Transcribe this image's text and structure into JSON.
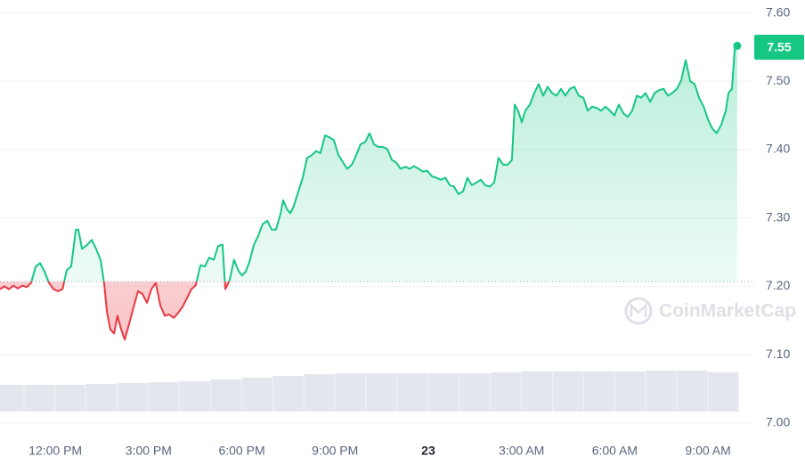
{
  "chart_data": {
    "type": "line",
    "x": [
      -1.78,
      -1.64,
      -1.49,
      -1.35,
      -1.21,
      -1.06,
      -0.92,
      -0.78,
      -0.63,
      -0.49,
      -0.35,
      -0.2,
      -0.06,
      0.08,
      0.23,
      0.37,
      0.51,
      0.66,
      0.74,
      0.86,
      1.03,
      1.17,
      1.31,
      1.46,
      1.57,
      1.66,
      1.77,
      1.89,
      2.0,
      2.12,
      2.23,
      2.37,
      2.52,
      2.66,
      2.8,
      2.95,
      3.09,
      3.23,
      3.38,
      3.52,
      3.66,
      3.81,
      3.95,
      4.09,
      4.24,
      4.38,
      4.52,
      4.67,
      4.81,
      4.95,
      5.1,
      5.24,
      5.38,
      5.47,
      5.61,
      5.75,
      5.9,
      6.01,
      6.13,
      6.24,
      6.39,
      6.53,
      6.67,
      6.82,
      6.96,
      7.1,
      7.25,
      7.33,
      7.45,
      7.56,
      7.67,
      7.82,
      7.96,
      8.1,
      8.25,
      8.39,
      8.53,
      8.68,
      8.82,
      8.96,
      9.11,
      9.25,
      9.39,
      9.54,
      9.68,
      9.82,
      9.97,
      10.11,
      10.25,
      10.4,
      10.54,
      10.68,
      10.83,
      10.97,
      11.11,
      11.26,
      11.4,
      11.54,
      11.69,
      11.83,
      11.97,
      12.12,
      12.26,
      12.4,
      12.55,
      12.69,
      12.83,
      12.97,
      13.12,
      13.26,
      13.4,
      13.55,
      13.69,
      13.83,
      13.98,
      14.12,
      14.26,
      14.41,
      14.55,
      14.69,
      14.78,
      14.89,
      15.01,
      15.12,
      15.27,
      15.41,
      15.55,
      15.7,
      15.84,
      15.98,
      16.13,
      16.27,
      16.41,
      16.56,
      16.7,
      16.84,
      16.99,
      17.13,
      17.27,
      17.42,
      17.56,
      17.7,
      17.85,
      17.99,
      18.13,
      18.28,
      18.42,
      18.56,
      18.71,
      18.85,
      18.99,
      19.14,
      19.28,
      19.42,
      19.57,
      19.71,
      19.85,
      20.0,
      20.14,
      20.28,
      20.43,
      20.57,
      20.71,
      20.86,
      21.0,
      21.14,
      21.28,
      21.43,
      21.57,
      21.66,
      21.77,
      21.86,
      21.94
    ],
    "values": [
      7.196,
      7.2,
      7.196,
      7.201,
      7.197,
      7.201,
      7.199,
      7.205,
      7.229,
      7.234,
      7.222,
      7.205,
      7.196,
      7.193,
      7.196,
      7.224,
      7.229,
      7.283,
      7.283,
      7.255,
      7.261,
      7.268,
      7.255,
      7.238,
      7.205,
      7.163,
      7.137,
      7.131,
      7.157,
      7.137,
      7.122,
      7.144,
      7.17,
      7.193,
      7.189,
      7.176,
      7.196,
      7.205,
      7.172,
      7.157,
      7.159,
      7.154,
      7.161,
      7.17,
      7.183,
      7.196,
      7.202,
      7.231,
      7.229,
      7.242,
      7.239,
      7.259,
      7.261,
      7.196,
      7.209,
      7.239,
      7.222,
      7.216,
      7.222,
      7.235,
      7.261,
      7.274,
      7.291,
      7.296,
      7.283,
      7.283,
      7.307,
      7.326,
      7.313,
      7.307,
      7.317,
      7.339,
      7.359,
      7.388,
      7.392,
      7.398,
      7.395,
      7.421,
      7.418,
      7.414,
      7.392,
      7.382,
      7.372,
      7.378,
      7.392,
      7.408,
      7.411,
      7.424,
      7.408,
      7.404,
      7.404,
      7.401,
      7.385,
      7.381,
      7.372,
      7.375,
      7.372,
      7.376,
      7.372,
      7.368,
      7.369,
      7.361,
      7.359,
      7.356,
      7.359,
      7.348,
      7.346,
      7.335,
      7.339,
      7.359,
      7.348,
      7.352,
      7.356,
      7.348,
      7.346,
      7.352,
      7.388,
      7.378,
      7.378,
      7.385,
      7.466,
      7.457,
      7.44,
      7.457,
      7.466,
      7.483,
      7.496,
      7.479,
      7.492,
      7.483,
      7.479,
      7.489,
      7.479,
      7.489,
      7.492,
      7.479,
      7.476,
      7.457,
      7.463,
      7.461,
      7.457,
      7.463,
      7.457,
      7.45,
      7.466,
      7.453,
      7.448,
      7.457,
      7.479,
      7.476,
      7.483,
      7.47,
      7.483,
      7.487,
      7.489,
      7.479,
      7.483,
      7.489,
      7.502,
      7.531,
      7.5,
      7.496,
      7.476,
      7.463,
      7.444,
      7.431,
      7.424,
      7.437,
      7.457,
      7.483,
      7.489,
      7.548,
      7.552
    ],
    "color": "#16c784",
    "down_color": "#ea3943",
    "baseline": 7.207,
    "current_price": 7.55,
    "watermark": "CoinMarketCap",
    "volume": {
      "color": "#e3e6ec",
      "x": [
        -1.5,
        -0.5,
        0.5,
        1.5,
        2.5,
        3.5,
        4.5,
        5.5,
        6.5,
        7.5,
        8.5,
        9.5,
        10.5,
        11.5,
        12.5,
        13.5,
        14.5,
        15.5,
        16.5,
        17.5,
        18.5,
        19.5,
        20.5,
        21.5
      ],
      "values": [
        30,
        30,
        30,
        31,
        32,
        33,
        34,
        36,
        38,
        40,
        42,
        43,
        43,
        43,
        43,
        43,
        44,
        45,
        45,
        45,
        45,
        46,
        46,
        44
      ]
    },
    "xlim": [
      -1.78,
      22.43
    ],
    "ylim": [
      6.983,
      7.619
    ],
    "xticks": [
      {
        "value": 0,
        "label": "12:00 PM"
      },
      {
        "value": 3,
        "label": "3:00 PM"
      },
      {
        "value": 6,
        "label": "6:00 PM"
      },
      {
        "value": 9,
        "label": "9:00 PM"
      },
      {
        "value": 12,
        "label": "23"
      },
      {
        "value": 15,
        "label": "3:00 AM"
      },
      {
        "value": 18,
        "label": "6:00 AM"
      },
      {
        "value": 21,
        "label": "9:00 AM"
      }
    ],
    "yticks": [
      {
        "value": 7.6,
        "label": "7.60"
      },
      {
        "value": 7.5,
        "label": "7.50"
      },
      {
        "value": 7.4,
        "label": "7.40"
      },
      {
        "value": 7.3,
        "label": "7.30"
      },
      {
        "value": 7.2,
        "label": "7.20"
      },
      {
        "value": 7.1,
        "label": "7.10"
      },
      {
        "value": 7.0,
        "label": "7.00"
      }
    ],
    "grid": true
  }
}
